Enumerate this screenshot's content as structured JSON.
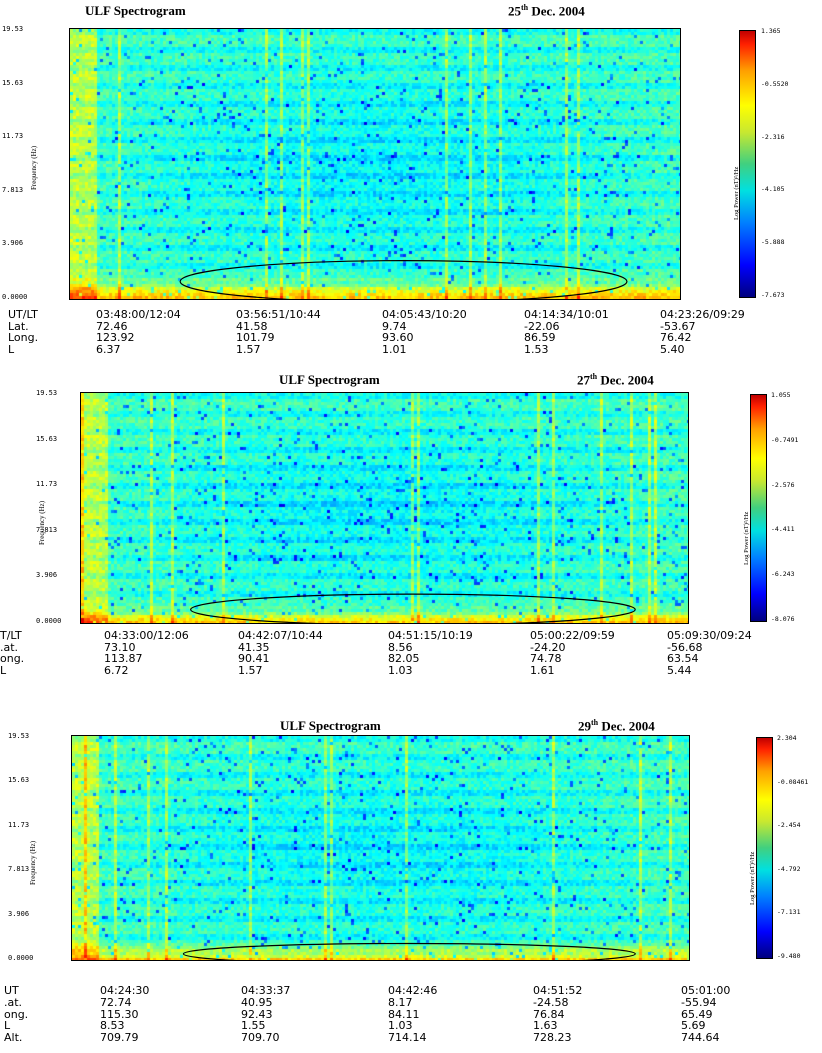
{
  "chart_data": [
    {
      "type": "heatmap",
      "title": "ULF Spectrogram",
      "date_day": "25",
      "date_suffix": "th",
      "date_rest": " Dec. 2004",
      "ylabel": "Frequency (Hz)",
      "ylim": [
        0.0,
        19.53
      ],
      "yticks": [
        "19.53",
        "15.63",
        "11.73",
        "7.813",
        "3.906",
        "0.0000"
      ],
      "colorbar": {
        "label": "Log Power (nT)²/Hz",
        "ticks": [
          "1.365",
          "-0.5520",
          "-2.316",
          "-4.105",
          "-5.888",
          "-7.673"
        ]
      },
      "ellipse": {
        "center_freq": 1.4,
        "freq_radius": 1.5
      },
      "info_rows": [
        {
          "label": "UT/LT",
          "values": [
            "03:48:00/12:04",
            "03:56:51/10:44",
            "04:05:43/10:20",
            "04:14:34/10:01",
            "04:23:26/09:29"
          ]
        },
        {
          "label": "Lat.",
          "values": [
            "72.46",
            "41.58",
            "9.74",
            "-22.06",
            "-53.67"
          ]
        },
        {
          "label": "Long.",
          "values": [
            "123.92",
            "101.79",
            "93.60",
            "86.59",
            "76.42"
          ]
        },
        {
          "label": "L",
          "values": [
            "6.37",
            "1.57",
            "1.01",
            "1.53",
            "5.40"
          ]
        }
      ]
    },
    {
      "type": "heatmap",
      "title": "ULF Spectrogram",
      "date_day": "27",
      "date_suffix": "th",
      "date_rest": " Dec. 2004",
      "ylabel": "Frequency (Hz)",
      "ylim": [
        0.0,
        19.53
      ],
      "yticks": [
        "19.53",
        "15.63",
        "11.73",
        "7.813",
        "3.906",
        "0.0000"
      ],
      "colorbar": {
        "label": "Log Power (nT)²/Hz",
        "ticks": [
          "1.055",
          "-0.7491",
          "-2.576",
          "-4.411",
          "-6.243",
          "-8.076"
        ]
      },
      "ellipse": {
        "center_freq": 1.3,
        "freq_radius": 1.3
      },
      "info_rows": [
        {
          "label": "T/LT",
          "values": [
            "04:33:00/12:06",
            "04:42:07/10:44",
            "04:51:15/10:19",
            "05:00:22/09:59",
            "05:09:30/09:24"
          ]
        },
        {
          "label": ".at.",
          "values": [
            "73.10",
            "41.35",
            "8.56",
            "-24.20",
            "-56.68"
          ]
        },
        {
          "label": "ong.",
          "values": [
            "113.87",
            "90.41",
            "82.05",
            "74.78",
            "63.54"
          ]
        },
        {
          "label": "L",
          "values": [
            "6.72",
            "1.57",
            "1.03",
            "1.61",
            "5.44"
          ]
        }
      ]
    },
    {
      "type": "heatmap",
      "title": "ULF Spectrogram",
      "date_day": "29",
      "date_suffix": "th",
      "date_rest": " Dec. 2004",
      "ylabel": "Frequency (Hz)",
      "ylim": [
        0.0,
        19.53
      ],
      "yticks": [
        "19.53",
        "15.63",
        "11.73",
        "7.813",
        "3.906",
        "0.0000"
      ],
      "colorbar": {
        "label": "Log Power (nT)²/Hz",
        "ticks": [
          "2.304",
          "-0.08461",
          "-2.454",
          "-4.792",
          "-7.131",
          "-9.480"
        ]
      },
      "ellipse": {
        "center_freq": 0.7,
        "freq_radius": 0.9
      },
      "info_rows": [
        {
          "label": "UT",
          "values": [
            "04:24:30",
            "04:33:37",
            "04:42:46",
            "04:51:52",
            "05:01:00"
          ]
        },
        {
          "label": ".at.",
          "values": [
            "72.74",
            "40.95",
            "8.17",
            "-24.58",
            "-55.94"
          ]
        },
        {
          "label": "ong.",
          "values": [
            "115.30",
            "92.43",
            "84.11",
            "76.84",
            "65.49"
          ]
        },
        {
          "label": "L",
          "values": [
            "8.53",
            "1.55",
            "1.03",
            "1.63",
            "5.69"
          ]
        },
        {
          "label": "Alt.",
          "values": [
            "709.79",
            "709.70",
            "714.14",
            "728.23",
            "744.64"
          ]
        }
      ]
    }
  ]
}
